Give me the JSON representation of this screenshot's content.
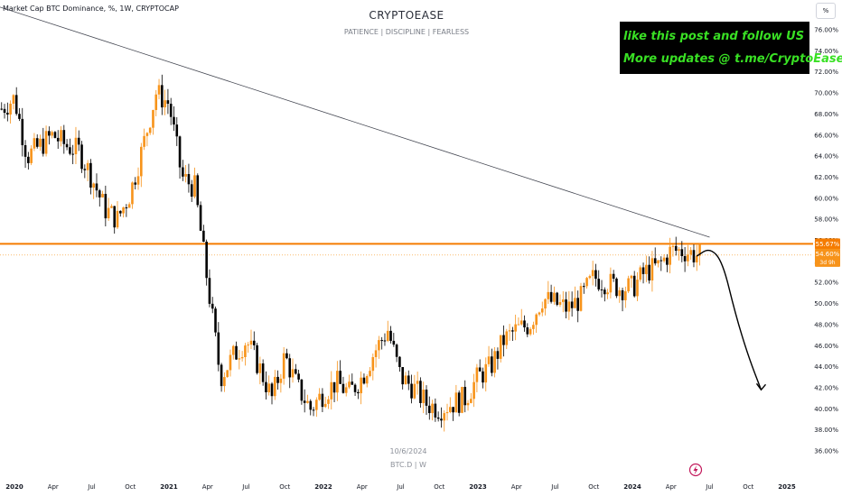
{
  "header": {
    "symbol_label": "Market Cap BTC Dominance, %, 1W, CRYPTOCAP",
    "brand": "CRYPTOEASE",
    "tagline": "PATIENCE  |  DISCIPLINE  |  FEARLESS",
    "unit_button": "%"
  },
  "promo": {
    "line1": "like this post and follow US",
    "line2": "More updates @ t.me/CryptoEase"
  },
  "watermark": {
    "date": "10/6/2024",
    "symbol": "BTC.D | W"
  },
  "colors": {
    "up_candle": "#f7931a",
    "down_candle": "#000000",
    "level_line": "#f57c00",
    "trendline": "#434651",
    "promo_bg": "#000000",
    "promo_text": "#39e024"
  },
  "chart_data": {
    "type": "candlestick",
    "timeframe": "1W",
    "x_start": "2019-12",
    "x_end": "2025-02",
    "ylim": [
      35,
      78
    ],
    "y_ticks": [
      "36.00%",
      "38.00%",
      "40.00%",
      "42.00%",
      "44.00%",
      "46.00%",
      "48.00%",
      "50.00%",
      "52.00%",
      "54.00%",
      "56.00%",
      "58.00%",
      "60.00%",
      "62.00%",
      "64.00%",
      "66.00%",
      "68.00%",
      "70.00%",
      "72.00%",
      "74.00%",
      "76.00%"
    ],
    "x_ticks": [
      {
        "label": "2020",
        "date": "2020-01",
        "bold": true
      },
      {
        "label": "Apr",
        "date": "2020-04"
      },
      {
        "label": "Jul",
        "date": "2020-07"
      },
      {
        "label": "Oct",
        "date": "2020-10"
      },
      {
        "label": "2021",
        "date": "2021-01",
        "bold": true
      },
      {
        "label": "Apr",
        "date": "2021-04"
      },
      {
        "label": "Jul",
        "date": "2021-07"
      },
      {
        "label": "Oct",
        "date": "2021-10"
      },
      {
        "label": "2022",
        "date": "2022-01",
        "bold": true
      },
      {
        "label": "Apr",
        "date": "2022-04"
      },
      {
        "label": "Jul",
        "date": "2022-07"
      },
      {
        "label": "Oct",
        "date": "2022-10"
      },
      {
        "label": "2023",
        "date": "2023-01",
        "bold": true
      },
      {
        "label": "Apr",
        "date": "2023-04"
      },
      {
        "label": "Jul",
        "date": "2023-07"
      },
      {
        "label": "Oct",
        "date": "2023-10"
      },
      {
        "label": "2024",
        "date": "2024-01",
        "bold": true
      },
      {
        "label": "Apr",
        "date": "2024-04"
      },
      {
        "label": "Jul",
        "date": "2024-07"
      },
      {
        "label": "Oct",
        "date": "2024-10"
      },
      {
        "label": "2025",
        "date": "2025-01",
        "bold": true
      }
    ],
    "closes": [
      {
        "date": "2019-12",
        "value": 68.5
      },
      {
        "date": "2020-01",
        "value": 69.5
      },
      {
        "date": "2020-02",
        "value": 64.0
      },
      {
        "date": "2020-03",
        "value": 65.0
      },
      {
        "date": "2020-04",
        "value": 66.0
      },
      {
        "date": "2020-05",
        "value": 65.0
      },
      {
        "date": "2020-06",
        "value": 64.5
      },
      {
        "date": "2020-07",
        "value": 62.0
      },
      {
        "date": "2020-08",
        "value": 59.0
      },
      {
        "date": "2020-09",
        "value": 58.0
      },
      {
        "date": "2020-10",
        "value": 60.5
      },
      {
        "date": "2020-11",
        "value": 65.0
      },
      {
        "date": "2020-12",
        "value": 70.0
      },
      {
        "date": "2021-01",
        "value": 69.0
      },
      {
        "date": "2021-02",
        "value": 62.0
      },
      {
        "date": "2021-03",
        "value": 61.0
      },
      {
        "date": "2021-04",
        "value": 52.0
      },
      {
        "date": "2021-05",
        "value": 43.0
      },
      {
        "date": "2021-06",
        "value": 45.0
      },
      {
        "date": "2021-07",
        "value": 46.5
      },
      {
        "date": "2021-08",
        "value": 44.0
      },
      {
        "date": "2021-09",
        "value": 41.0
      },
      {
        "date": "2021-10",
        "value": 45.0
      },
      {
        "date": "2021-11",
        "value": 42.0
      },
      {
        "date": "2021-12",
        "value": 40.0
      },
      {
        "date": "2022-01",
        "value": 41.5
      },
      {
        "date": "2022-02",
        "value": 42.5
      },
      {
        "date": "2022-03",
        "value": 41.5
      },
      {
        "date": "2022-04",
        "value": 43.0
      },
      {
        "date": "2022-05",
        "value": 45.5
      },
      {
        "date": "2022-06",
        "value": 47.5
      },
      {
        "date": "2022-07",
        "value": 43.0
      },
      {
        "date": "2022-08",
        "value": 42.0
      },
      {
        "date": "2022-09",
        "value": 40.5
      },
      {
        "date": "2022-10",
        "value": 40.0
      },
      {
        "date": "2022-11",
        "value": 40.5
      },
      {
        "date": "2022-12",
        "value": 41.0
      },
      {
        "date": "2023-01",
        "value": 43.0
      },
      {
        "date": "2023-02",
        "value": 44.0
      },
      {
        "date": "2023-03",
        "value": 46.5
      },
      {
        "date": "2023-04",
        "value": 47.5
      },
      {
        "date": "2023-05",
        "value": 48.0
      },
      {
        "date": "2023-06",
        "value": 50.5
      },
      {
        "date": "2023-07",
        "value": 50.0
      },
      {
        "date": "2023-08",
        "value": 49.5
      },
      {
        "date": "2023-09",
        "value": 50.5
      },
      {
        "date": "2023-10",
        "value": 52.5
      },
      {
        "date": "2023-11",
        "value": 52.0
      },
      {
        "date": "2023-12",
        "value": 51.5
      },
      {
        "date": "2024-01",
        "value": 51.5
      },
      {
        "date": "2024-02",
        "value": 53.0
      },
      {
        "date": "2024-03",
        "value": 53.5
      },
      {
        "date": "2024-04",
        "value": 55.0
      },
      {
        "date": "2024-05",
        "value": 55.0
      },
      {
        "date": "2024-06",
        "value": 54.6
      }
    ],
    "horizontal_level": {
      "value": 55.67,
      "label": "55.67%"
    },
    "current_price": {
      "value": 54.6,
      "label": "54.60%",
      "countdown": "3d 9h"
    },
    "trendline": {
      "from": {
        "date": "2019-11",
        "value": 78.5
      },
      "to": {
        "date": "2024-07",
        "value": 56.3
      }
    },
    "projection_path": [
      {
        "date": "2024-06",
        "value": 54.5
      },
      {
        "date": "2024-07",
        "value": 55.3
      },
      {
        "date": "2024-08",
        "value": 54.0
      },
      {
        "date": "2024-09",
        "value": 49.0
      },
      {
        "date": "2024-10",
        "value": 45.0
      },
      {
        "date": "2024-11",
        "value": 41.8
      }
    ]
  }
}
